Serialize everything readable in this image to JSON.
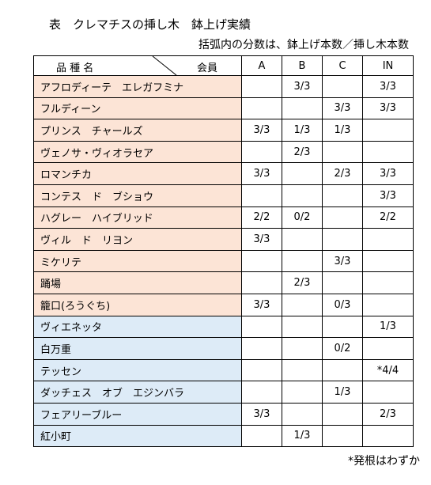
{
  "title": "表　クレマチスの挿し木　鉢上げ実績",
  "subtitle": "括弧内の分数は、鉢上げ本数／挿し木本数",
  "table": {
    "corner_left": "品 種 名",
    "corner_right": "会員",
    "columns": [
      "A",
      "B",
      "C",
      "IN"
    ],
    "rows": [
      [
        "アフロディーテ　エレガフミナ",
        null,
        "3/3",
        null,
        "3/3"
      ],
      [
        "フルディーン",
        null,
        null,
        "3/3",
        "3/3"
      ],
      [
        "プリンス　チャールズ",
        "3/3",
        "1/3",
        "1/3",
        null
      ],
      [
        "ヴェノサ・ヴィオラセア",
        null,
        "2/3",
        null,
        null
      ],
      [
        "ロマンチカ",
        "3/3",
        null,
        "2/3",
        "3/3"
      ],
      [
        "コンテス　ド　ブショウ",
        null,
        null,
        null,
        "3/3"
      ],
      [
        "ハグレー　ハイブリッド",
        "2/2",
        "0/2",
        null,
        "2/2"
      ],
      [
        "ヴィル　ド　リヨン",
        "3/3",
        null,
        null,
        null
      ],
      [
        "ミケリテ",
        null,
        null,
        "3/3",
        null
      ],
      [
        "踊場",
        null,
        "2/3",
        null,
        null
      ],
      [
        "籠口(ろうぐち)",
        "3/3",
        null,
        "0/3",
        null
      ],
      [
        "ヴィエネッタ",
        null,
        null,
        null,
        "1/3"
      ],
      [
        "白万重",
        null,
        null,
        "0/2",
        null
      ],
      [
        "テッセン",
        null,
        null,
        null,
        "*4/4"
      ],
      [
        "ダッチェス　オブ　エジンバラ",
        null,
        null,
        "1/3",
        null
      ],
      [
        "フェアリーブルー",
        "3/3",
        null,
        null,
        "2/3"
      ],
      [
        "紅小町",
        null,
        "1/3",
        null,
        null
      ]
    ]
  },
  "footnote": "*発根はわずか"
}
